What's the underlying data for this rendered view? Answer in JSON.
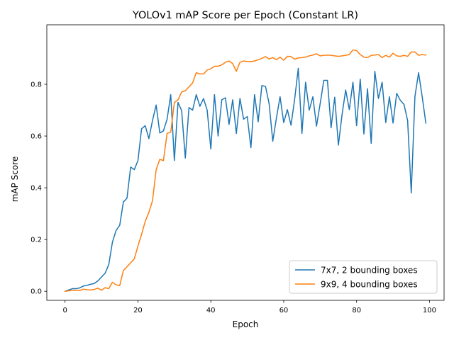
{
  "chart_data": {
    "type": "line",
    "title": "YOLOv1 mAP Score per Epoch (Constant LR)",
    "xlabel": "Epoch",
    "ylabel": "mAP Score",
    "xlim": [
      -5,
      104
    ],
    "ylim": [
      -0.035,
      1.03
    ],
    "xticks": [
      0,
      20,
      40,
      60,
      80,
      100
    ],
    "xtick_labels": [
      "0",
      "20",
      "40",
      "60",
      "80",
      "100"
    ],
    "yticks": [
      0.0,
      0.2,
      0.4,
      0.6,
      0.8
    ],
    "ytick_labels": [
      "0.0",
      "0.2",
      "0.4",
      "0.6",
      "0.8"
    ],
    "grid": false,
    "legend_position": "lower-right",
    "series": [
      {
        "name": "7x7, 2 bounding boxes",
        "color": "#1f77b4",
        "values": [
          0.0,
          0.005,
          0.01,
          0.01,
          0.013,
          0.02,
          0.023,
          0.027,
          0.03,
          0.04,
          0.055,
          0.07,
          0.103,
          0.19,
          0.235,
          0.255,
          0.345,
          0.36,
          0.48,
          0.47,
          0.505,
          0.628,
          0.64,
          0.59,
          0.66,
          0.72,
          0.612,
          0.62,
          0.665,
          0.76,
          0.505,
          0.73,
          0.698,
          0.515,
          0.71,
          0.7,
          0.76,
          0.715,
          0.745,
          0.7,
          0.55,
          0.76,
          0.6,
          0.74,
          0.748,
          0.645,
          0.74,
          0.61,
          0.745,
          0.665,
          0.675,
          0.555,
          0.76,
          0.655,
          0.795,
          0.792,
          0.725,
          0.58,
          0.67,
          0.752,
          0.652,
          0.702,
          0.642,
          0.742,
          0.862,
          0.61,
          0.808,
          0.7,
          0.752,
          0.638,
          0.725,
          0.815,
          0.815,
          0.632,
          0.75,
          0.565,
          0.682,
          0.778,
          0.702,
          0.808,
          0.64,
          0.82,
          0.608,
          0.783,
          0.572,
          0.85,
          0.745,
          0.808,
          0.652,
          0.752,
          0.65,
          0.765,
          0.738,
          0.722,
          0.66,
          0.38,
          0.752,
          0.845,
          0.752,
          0.65
        ]
      },
      {
        "name": "9x9, 4 bounding boxes",
        "color": "#ff7f0e",
        "values": [
          0.0,
          0.002,
          0.003,
          0.004,
          0.003,
          0.008,
          0.006,
          0.005,
          0.007,
          0.012,
          0.004,
          0.014,
          0.01,
          0.035,
          0.025,
          0.022,
          0.08,
          0.095,
          0.11,
          0.125,
          0.175,
          0.22,
          0.27,
          0.305,
          0.35,
          0.47,
          0.51,
          0.505,
          0.61,
          0.615,
          0.73,
          0.74,
          0.77,
          0.775,
          0.79,
          0.805,
          0.845,
          0.84,
          0.84,
          0.855,
          0.86,
          0.87,
          0.87,
          0.875,
          0.885,
          0.89,
          0.88,
          0.85,
          0.885,
          0.89,
          0.888,
          0.888,
          0.89,
          0.895,
          0.9,
          0.907,
          0.898,
          0.903,
          0.895,
          0.905,
          0.893,
          0.908,
          0.907,
          0.897,
          0.902,
          0.903,
          0.905,
          0.91,
          0.913,
          0.918,
          0.91,
          0.912,
          0.913,
          0.912,
          0.91,
          0.908,
          0.91,
          0.912,
          0.915,
          0.933,
          0.93,
          0.915,
          0.905,
          0.903,
          0.912,
          0.913,
          0.915,
          0.903,
          0.912,
          0.905,
          0.92,
          0.91,
          0.908,
          0.912,
          0.908,
          0.925,
          0.925,
          0.912,
          0.915,
          0.913
        ]
      }
    ]
  }
}
